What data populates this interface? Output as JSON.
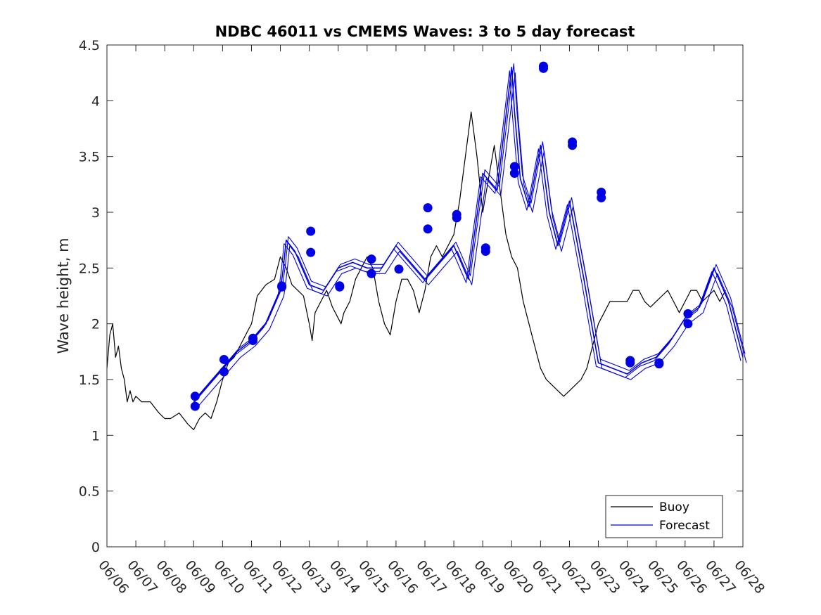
{
  "chart_data": {
    "type": "line",
    "title": "NDBC 46011 vs CMEMS Waves: 3 to 5 day forecast",
    "xlabel": "",
    "ylabel": "Wave height, m",
    "xlim": [
      "06/06",
      "06/28"
    ],
    "ylim": [
      0,
      4.5
    ],
    "yticks": [
      "0",
      "0.5",
      "1",
      "1.5",
      "2",
      "2.5",
      "3",
      "3.5",
      "4",
      "4.5"
    ],
    "xticks": [
      "06/06",
      "06/07",
      "06/08",
      "06/09",
      "06/10",
      "06/11",
      "06/12",
      "06/13",
      "06/14",
      "06/15",
      "06/16",
      "06/17",
      "06/18",
      "06/19",
      "06/20",
      "06/21",
      "06/22",
      "06/23",
      "06/24",
      "06/25",
      "06/26",
      "06/27",
      "06/28"
    ],
    "legend": {
      "position": "bottom-right",
      "entries": [
        "Buoy",
        "Forecast"
      ]
    },
    "colors": {
      "buoy": "#000000",
      "forecast": "#0000e6",
      "axes": "#262626"
    },
    "series": [
      {
        "name": "Buoy",
        "x_day": [
          0,
          0.1,
          0.2,
          0.3,
          0.4,
          0.5,
          0.6,
          0.7,
          0.8,
          0.9,
          1.0,
          1.2,
          1.5,
          1.8,
          2.0,
          2.2,
          2.5,
          2.8,
          3.0,
          3.2,
          3.4,
          3.6,
          3.8,
          4.0,
          4.2,
          4.4,
          4.6,
          4.8,
          5.0,
          5.2,
          5.5,
          5.8,
          6.0,
          6.2,
          6.4,
          6.6,
          6.8,
          7.0,
          7.1,
          7.2,
          7.4,
          7.6,
          7.8,
          8.0,
          8.1,
          8.2,
          8.4,
          8.6,
          8.8,
          9.0,
          9.2,
          9.4,
          9.6,
          9.8,
          10.0,
          10.2,
          10.4,
          10.6,
          10.8,
          11.0,
          11.2,
          11.4,
          11.6,
          11.8,
          12.0,
          12.2,
          12.4,
          12.6,
          12.8,
          13.0,
          13.2,
          13.4,
          13.6,
          13.8,
          14.0,
          14.2,
          14.4,
          14.6,
          14.8,
          15.0,
          15.1,
          15.2,
          15.4,
          15.6,
          15.8,
          16.0,
          16.2,
          16.4,
          16.6,
          16.8,
          17.0,
          17.2,
          17.4,
          17.6,
          17.8,
          18.0,
          18.2,
          18.4,
          18.6,
          18.8,
          19.0,
          19.2,
          19.4,
          19.6,
          19.8,
          20.0,
          20.2,
          20.4,
          20.6,
          20.8,
          21.0,
          21.2,
          21.4
        ],
        "values": [
          1.6,
          1.9,
          2.0,
          1.7,
          1.8,
          1.6,
          1.5,
          1.3,
          1.4,
          1.3,
          1.35,
          1.3,
          1.3,
          1.2,
          1.15,
          1.15,
          1.2,
          1.1,
          1.05,
          1.15,
          1.2,
          1.15,
          1.3,
          1.5,
          1.65,
          1.7,
          1.8,
          1.9,
          2.0,
          2.25,
          2.35,
          2.4,
          2.6,
          2.5,
          2.35,
          2.3,
          2.25,
          2.0,
          1.85,
          2.1,
          2.2,
          2.3,
          2.15,
          2.05,
          2.0,
          2.1,
          2.2,
          2.4,
          2.5,
          2.6,
          2.5,
          2.2,
          2.0,
          1.9,
          2.2,
          2.4,
          2.4,
          2.3,
          2.1,
          2.3,
          2.6,
          2.7,
          2.6,
          2.7,
          2.8,
          3.1,
          3.5,
          3.9,
          3.5,
          3.0,
          3.3,
          3.6,
          3.2,
          2.8,
          2.6,
          2.5,
          2.2,
          2.0,
          1.8,
          1.6,
          1.55,
          1.5,
          1.45,
          1.4,
          1.35,
          1.4,
          1.45,
          1.5,
          1.6,
          1.8,
          2.0,
          2.1,
          2.2,
          2.2,
          2.2,
          2.2,
          2.3,
          2.3,
          2.2,
          2.15,
          2.2,
          2.25,
          2.3,
          2.2,
          2.1,
          2.2,
          2.3,
          2.3,
          2.2,
          2.25,
          2.3,
          2.2,
          2.3
        ]
      },
      {
        "name": "Forecast",
        "x_day": [
          3.0,
          3.5,
          4.0,
          4.5,
          5.0,
          5.5,
          6.0,
          6.1,
          6.2,
          6.5,
          7.0,
          7.5,
          8.0,
          8.5,
          9.0,
          9.5,
          10.0,
          10.5,
          11.0,
          11.5,
          12.0,
          12.5,
          13.0,
          13.5,
          14.0,
          14.1,
          14.3,
          14.6,
          15.0,
          15.3,
          15.6,
          16.0,
          16.5,
          17.0,
          17.5,
          18.0,
          18.5,
          19.0,
          19.5,
          20.0,
          20.5,
          21.0,
          21.5,
          22.0
        ],
        "values": [
          1.3,
          1.45,
          1.6,
          1.75,
          1.85,
          2.0,
          2.3,
          2.5,
          2.75,
          2.65,
          2.35,
          2.3,
          2.5,
          2.55,
          2.5,
          2.5,
          2.7,
          2.55,
          2.4,
          2.55,
          2.7,
          2.4,
          3.35,
          3.2,
          4.3,
          3.9,
          3.3,
          3.05,
          3.6,
          3.0,
          2.7,
          3.1,
          2.4,
          1.65,
          1.6,
          1.55,
          1.65,
          1.7,
          1.85,
          2.05,
          2.15,
          2.5,
          2.2,
          1.7
        ]
      }
    ],
    "forecast_markers": {
      "x_day": [
        3.05,
        3.05,
        4.05,
        4.05,
        5.05,
        5.05,
        6.05,
        6.05,
        7.05,
        7.05,
        8.05,
        8.05,
        9.15,
        9.15,
        10.1,
        11.1,
        11.1,
        12.1,
        12.1,
        13.1,
        13.1,
        14.1,
        14.1,
        15.1,
        15.1,
        16.1,
        16.1,
        17.1,
        17.1,
        18.1,
        18.1,
        19.1,
        19.1,
        20.1,
        20.1
      ],
      "values": [
        1.35,
        1.26,
        1.68,
        1.57,
        1.87,
        1.85,
        2.34,
        2.33,
        2.83,
        2.64,
        2.34,
        2.33,
        2.58,
        2.45,
        2.49,
        3.04,
        2.85,
        2.98,
        2.95,
        2.68,
        2.65,
        3.41,
        3.35,
        4.31,
        4.29,
        3.63,
        3.6,
        3.18,
        3.13,
        1.67,
        1.65,
        1.65,
        1.64,
        2.09,
        2.0
      ]
    }
  }
}
